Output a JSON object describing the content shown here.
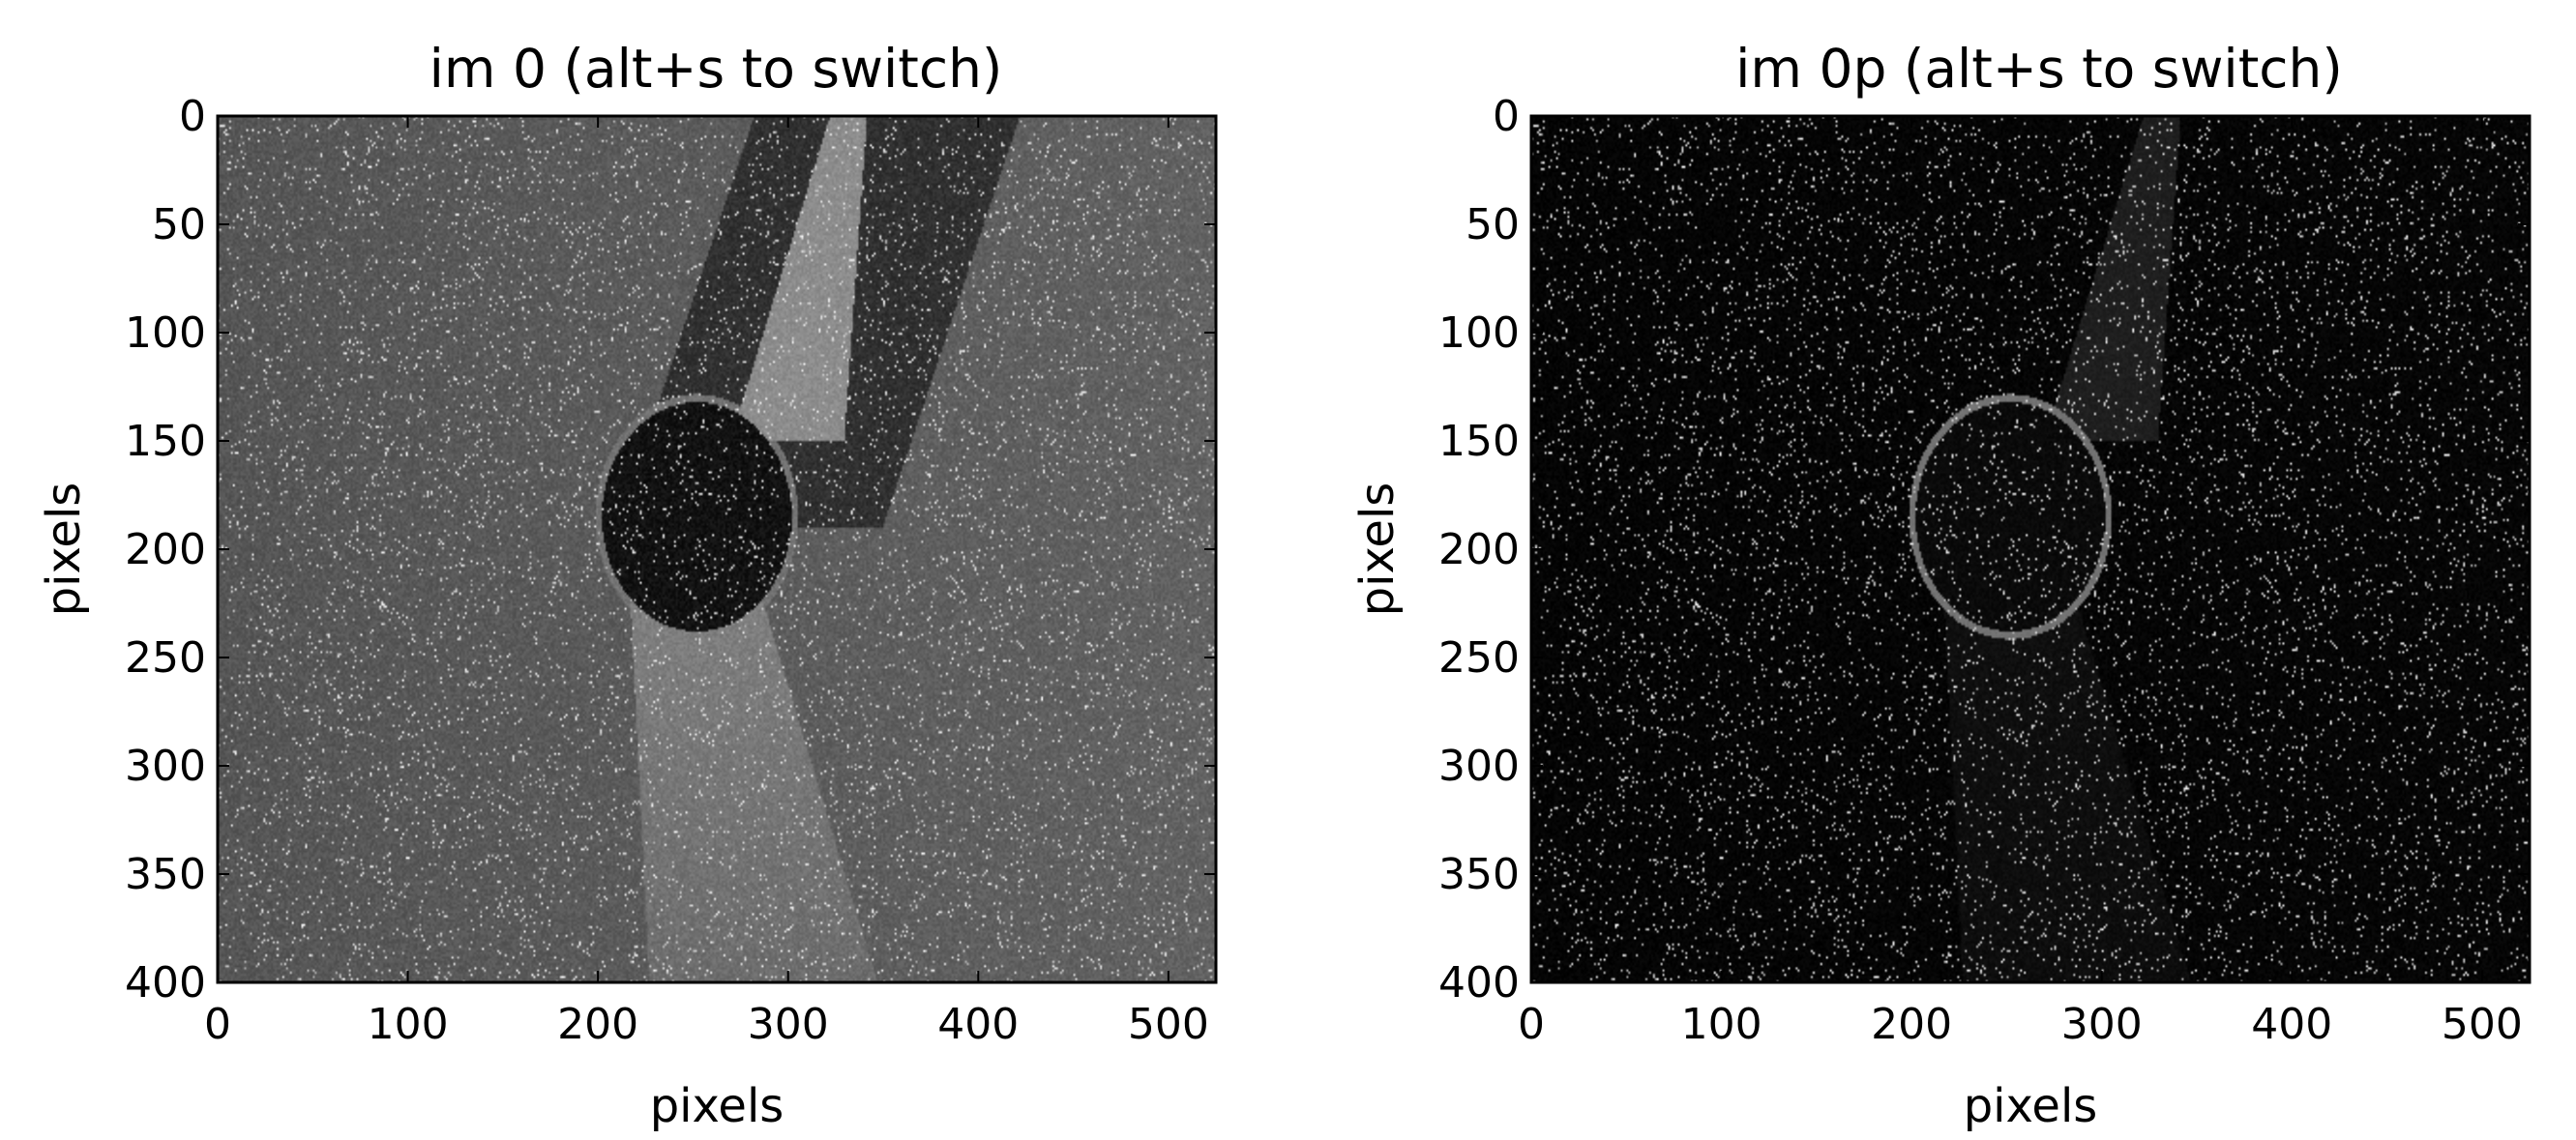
{
  "chart_data": [
    {
      "type": "heatmap",
      "title": "im 0 (alt+s to switch)",
      "xlabel": "pixels",
      "ylabel": "pixels",
      "xlim": [
        0,
        525
      ],
      "ylim": [
        400,
        0
      ],
      "x_ticks": [
        "0",
        "100",
        "200",
        "300",
        "400",
        "500"
      ],
      "y_ticks": [
        "0",
        "50",
        "100",
        "150",
        "200",
        "250",
        "300",
        "350",
        "400"
      ],
      "colormap": "gray",
      "grid": false,
      "image": {
        "description": "grayscale particle image",
        "background_level": 0.36,
        "speckle_density": 0.042,
        "obstacle": {
          "cx": 252,
          "cy": 185,
          "rx": 50,
          "ry": 53,
          "level": 0.07
        },
        "bright_wake_upper": {
          "level": 0.55
        },
        "bright_wake_lower": {
          "level": 0.5
        },
        "shadow_band": {
          "level": 0.18
        }
      }
    },
    {
      "type": "heatmap",
      "title": "im 0p (alt+s to switch)",
      "xlabel": "pixels",
      "ylabel": "pixels",
      "xlim": [
        0,
        525
      ],
      "ylim": [
        400,
        0
      ],
      "x_ticks": [
        "0",
        "100",
        "200",
        "300",
        "400",
        "500"
      ],
      "y_ticks": [
        "0",
        "50",
        "100",
        "150",
        "200",
        "250",
        "300",
        "350",
        "400"
      ],
      "colormap": "gray",
      "grid": false,
      "image": {
        "description": "background-subtracted particle image",
        "background_level": 0.02,
        "speckle_density": 0.042,
        "obstacle": {
          "cx": 252,
          "cy": 185,
          "rx": 50,
          "ry": 53,
          "level": 0.04
        },
        "bright_wake_upper": {
          "level": 0.12
        },
        "bright_wake_lower": {
          "level": 0.06
        },
        "shadow_band": {
          "level": 0.01
        }
      }
    }
  ],
  "colors": {
    "axes_frame": "#000000",
    "figure_background": "#ffffff"
  }
}
